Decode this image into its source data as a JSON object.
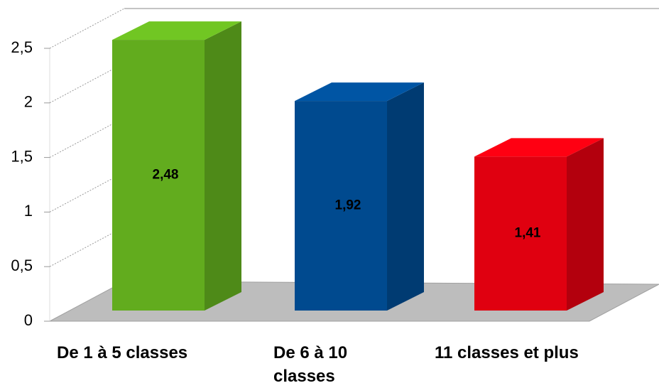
{
  "chart_data": {
    "type": "bar3d",
    "categories": [
      "De 1 à 5 classes",
      "De 6 à 10 classes",
      "11 classes et plus"
    ],
    "values": [
      2.48,
      1.92,
      1.41
    ],
    "value_labels": [
      "2,48",
      "1,92",
      "1,41"
    ],
    "colors": [
      "#62ac1e",
      "#004a8f",
      "#e00010"
    ],
    "ylim": [
      0,
      2.5
    ],
    "yticks": [
      0,
      {
        "value": 0.5,
        "label": "0,5"
      },
      1,
      {
        "value": 1.5,
        "label": "1,5"
      },
      2,
      {
        "value": 2.5,
        "label": "2,5"
      }
    ],
    "grid": true
  }
}
